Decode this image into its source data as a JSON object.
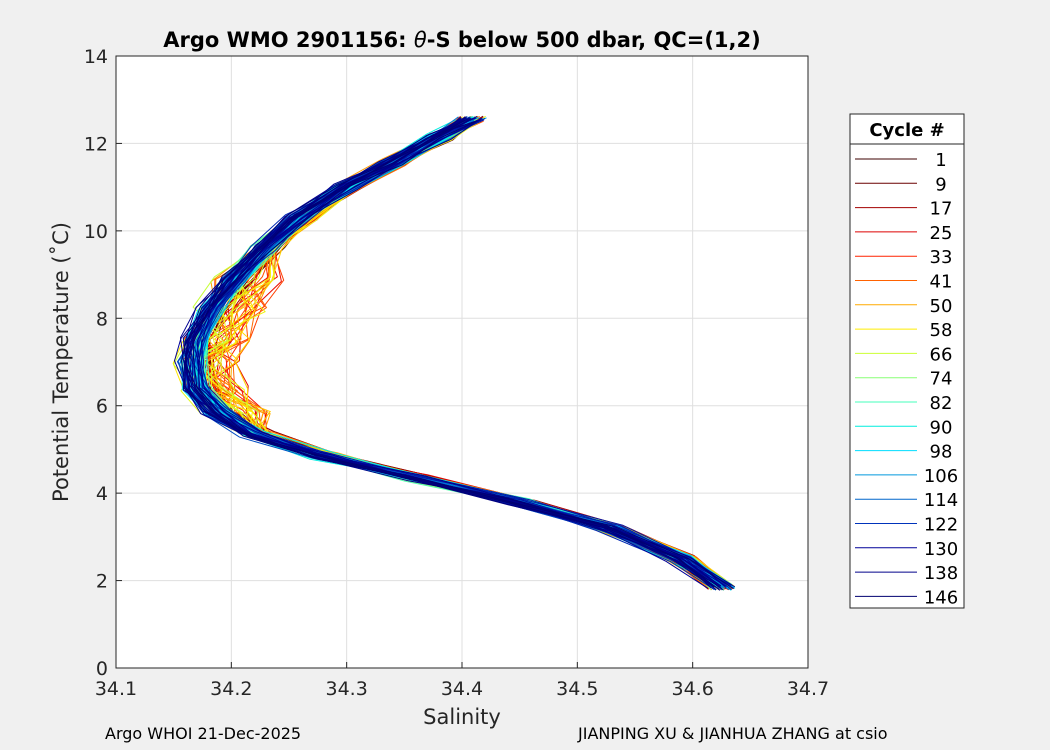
{
  "chart_data": {
    "type": "line",
    "title_prefix": "Argo WMO 2901156: ",
    "title_theta": "θ",
    "title_suffix": "-S below 500 dbar,  QC=(1,2)",
    "xlabel": "Salinity",
    "ylabel": "Potential Temperature (˚C)",
    "xlim": [
      34.1,
      34.7
    ],
    "ylim": [
      0,
      14
    ],
    "xticks": [
      34.1,
      34.2,
      34.3,
      34.4,
      34.5,
      34.6,
      34.7
    ],
    "xtick_labels": [
      "34.1",
      "34.2",
      "34.3",
      "34.4",
      "34.5",
      "34.6",
      "34.7"
    ],
    "yticks": [
      0,
      2,
      4,
      6,
      8,
      10,
      12,
      14
    ],
    "ytick_labels": [
      "0",
      "2",
      "4",
      "6",
      "8",
      "10",
      "12",
      "14"
    ],
    "grid": true,
    "legend": {
      "title": "Cycle #",
      "placement": "right-outside",
      "entries": [
        {
          "label": "1",
          "color": "#3d0000"
        },
        {
          "label": "9",
          "color": "#6a0000"
        },
        {
          "label": "17",
          "color": "#a30000"
        },
        {
          "label": "25",
          "color": "#dd0000"
        },
        {
          "label": "33",
          "color": "#ff2200"
        },
        {
          "label": "41",
          "color": "#ff6200"
        },
        {
          "label": "50",
          "color": "#ffaa00"
        },
        {
          "label": "58",
          "color": "#ffee00"
        },
        {
          "label": "66",
          "color": "#ccff33"
        },
        {
          "label": "74",
          "color": "#88ff77"
        },
        {
          "label": "82",
          "color": "#44ffbb"
        },
        {
          "label": "90",
          "color": "#00eedd"
        },
        {
          "label": "98",
          "color": "#00ddff"
        },
        {
          "label": "106",
          "color": "#0099dd"
        },
        {
          "label": "114",
          "color": "#0066cc"
        },
        {
          "label": "122",
          "color": "#0033bb"
        },
        {
          "label": "130",
          "color": "#000099"
        },
        {
          "label": "138",
          "color": "#00008a"
        },
        {
          "label": "146",
          "color": "#000070"
        }
      ]
    },
    "base_profile": [
      {
        "s": 34.408,
        "t": 12.55
      },
      {
        "s": 34.38,
        "t": 12.15
      },
      {
        "s": 34.34,
        "t": 11.55
      },
      {
        "s": 34.3,
        "t": 11.0
      },
      {
        "s": 34.26,
        "t": 10.3
      },
      {
        "s": 34.23,
        "t": 9.6
      },
      {
        "s": 34.205,
        "t": 8.9
      },
      {
        "s": 34.185,
        "t": 8.2
      },
      {
        "s": 34.172,
        "t": 7.5
      },
      {
        "s": 34.168,
        "t": 7.0
      },
      {
        "s": 34.172,
        "t": 6.4
      },
      {
        "s": 34.19,
        "t": 5.85
      },
      {
        "s": 34.22,
        "t": 5.35
      },
      {
        "s": 34.28,
        "t": 4.85
      },
      {
        "s": 34.36,
        "t": 4.35
      },
      {
        "s": 34.45,
        "t": 3.8
      },
      {
        "s": 34.53,
        "t": 3.2
      },
      {
        "s": 34.59,
        "t": 2.5
      },
      {
        "s": 34.625,
        "t": 1.85
      }
    ]
  },
  "footer": {
    "left": "Argo WHOI 21-Dec-2025",
    "right": "JIANPING XU & JIANHUA ZHANG at csio"
  }
}
